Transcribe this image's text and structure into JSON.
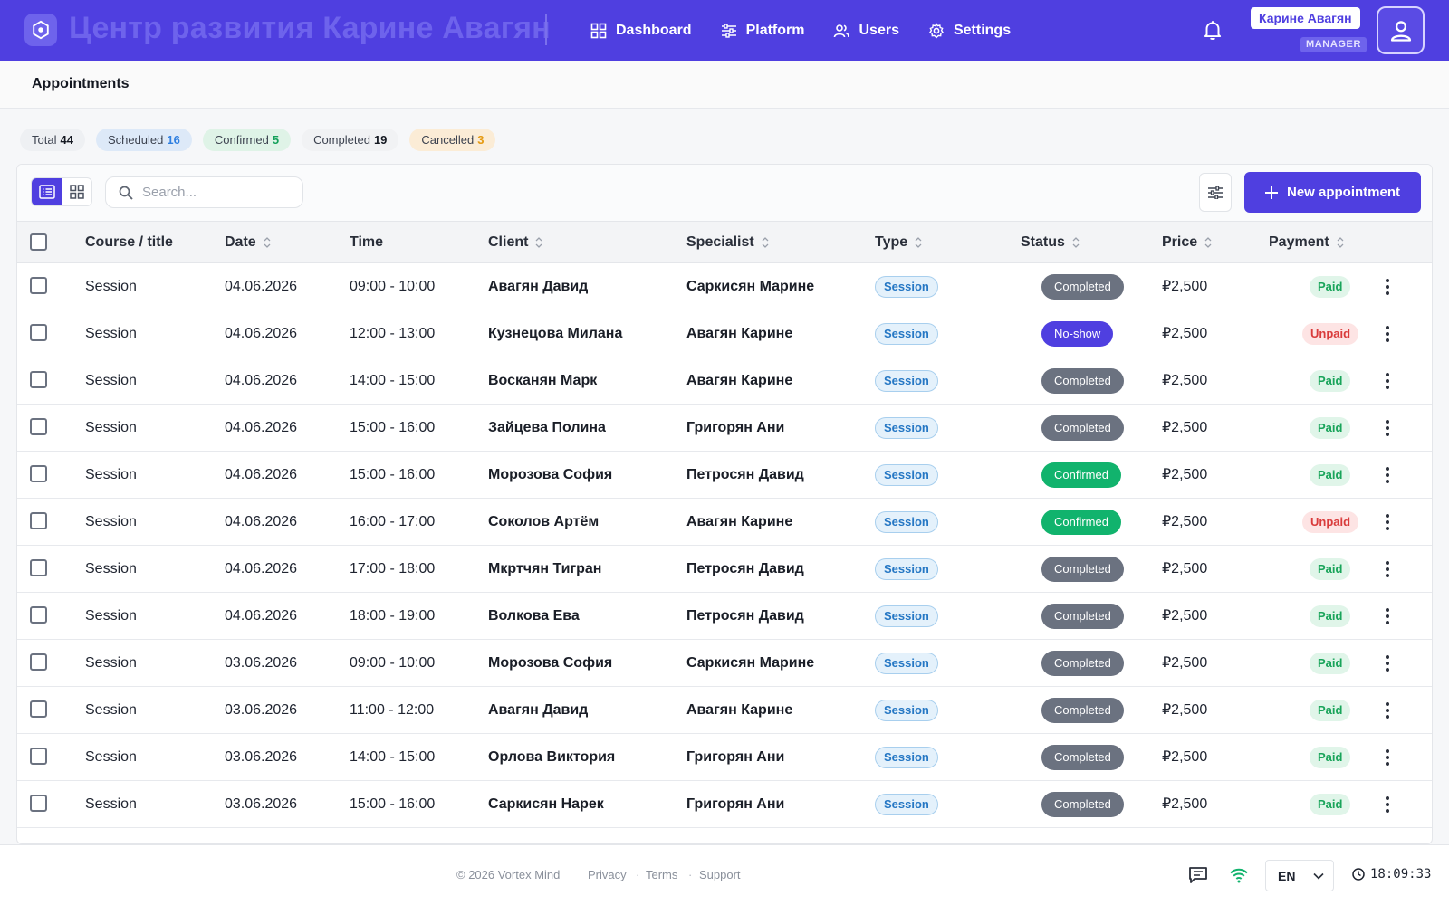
{
  "header": {
    "brand": "Центр развития Карине Авагян",
    "nav": [
      {
        "label": "Dashboard",
        "icon": "grid-icon"
      },
      {
        "label": "Platform",
        "icon": "sliders-icon"
      },
      {
        "label": "Users",
        "icon": "users-icon"
      },
      {
        "label": "Settings",
        "icon": "gear-icon"
      }
    ],
    "user": {
      "name": "Карине Авагян",
      "role": "MANAGER"
    }
  },
  "page": {
    "title": "Appointments"
  },
  "stats": [
    {
      "label": "Total",
      "value": "44"
    },
    {
      "label": "Scheduled",
      "value": "16"
    },
    {
      "label": "Confirmed",
      "value": "5"
    },
    {
      "label": "Completed",
      "value": "19"
    },
    {
      "label": "Cancelled",
      "value": "3"
    }
  ],
  "toolbar": {
    "search_placeholder": "Search...",
    "new_label": "New appointment"
  },
  "columns": {
    "title": "Course / title",
    "date": "Date",
    "time": "Time",
    "client": "Client",
    "specialist": "Specialist",
    "type": "Type",
    "status": "Status",
    "price": "Price",
    "payment": "Payment"
  },
  "rows": [
    {
      "title": "Session",
      "date": "04.06.2026",
      "time": "09:00 - 10:00",
      "client": "Авагян Давид",
      "specialist": "Саркисян Марине",
      "type": "Session",
      "status": "Completed",
      "price": "₽2,500",
      "payment": "Paid"
    },
    {
      "title": "Session",
      "date": "04.06.2026",
      "time": "12:00 - 13:00",
      "client": "Кузнецова Милана",
      "specialist": "Авагян Карине",
      "type": "Session",
      "status": "No-show",
      "price": "₽2,500",
      "payment": "Unpaid"
    },
    {
      "title": "Session",
      "date": "04.06.2026",
      "time": "14:00 - 15:00",
      "client": "Восканян Марк",
      "specialist": "Авагян Карине",
      "type": "Session",
      "status": "Completed",
      "price": "₽2,500",
      "payment": "Paid"
    },
    {
      "title": "Session",
      "date": "04.06.2026",
      "time": "15:00 - 16:00",
      "client": "Зайцева Полина",
      "specialist": "Григорян Ани",
      "type": "Session",
      "status": "Completed",
      "price": "₽2,500",
      "payment": "Paid"
    },
    {
      "title": "Session",
      "date": "04.06.2026",
      "time": "15:00 - 16:00",
      "client": "Морозова София",
      "specialist": "Петросян Давид",
      "type": "Session",
      "status": "Confirmed",
      "price": "₽2,500",
      "payment": "Paid"
    },
    {
      "title": "Session",
      "date": "04.06.2026",
      "time": "16:00 - 17:00",
      "client": "Соколов Артём",
      "specialist": "Авагян Карине",
      "type": "Session",
      "status": "Confirmed",
      "price": "₽2,500",
      "payment": "Unpaid"
    },
    {
      "title": "Session",
      "date": "04.06.2026",
      "time": "17:00 - 18:00",
      "client": "Мкртчян Тигран",
      "specialist": "Петросян Давид",
      "type": "Session",
      "status": "Completed",
      "price": "₽2,500",
      "payment": "Paid"
    },
    {
      "title": "Session",
      "date": "04.06.2026",
      "time": "18:00 - 19:00",
      "client": "Волкова Ева",
      "specialist": "Петросян Давид",
      "type": "Session",
      "status": "Completed",
      "price": "₽2,500",
      "payment": "Paid"
    },
    {
      "title": "Session",
      "date": "03.06.2026",
      "time": "09:00 - 10:00",
      "client": "Морозова София",
      "specialist": "Саркисян Марине",
      "type": "Session",
      "status": "Completed",
      "price": "₽2,500",
      "payment": "Paid"
    },
    {
      "title": "Session",
      "date": "03.06.2026",
      "time": "11:00 - 12:00",
      "client": "Авагян Давид",
      "specialist": "Авагян Карине",
      "type": "Session",
      "status": "Completed",
      "price": "₽2,500",
      "payment": "Paid"
    },
    {
      "title": "Session",
      "date": "03.06.2026",
      "time": "14:00 - 15:00",
      "client": "Орлова Виктория",
      "specialist": "Григорян Ани",
      "type": "Session",
      "status": "Completed",
      "price": "₽2,500",
      "payment": "Paid"
    },
    {
      "title": "Session",
      "date": "03.06.2026",
      "time": "15:00 - 16:00",
      "client": "Саркисян Нарек",
      "specialist": "Григорян Ани",
      "type": "Session",
      "status": "Completed",
      "price": "₽2,500",
      "payment": "Paid"
    }
  ],
  "footer": {
    "copyright": "© 2026 Vortex Mind",
    "links": [
      "Privacy",
      "Terms",
      "Support"
    ],
    "language": "EN",
    "time": "18:09:33"
  },
  "colors": {
    "accent": "#4f3fe0",
    "completed": "#6b7280",
    "confirmed": "#11b36d",
    "paid": "#19a45a",
    "unpaid": "#d93b3b"
  }
}
